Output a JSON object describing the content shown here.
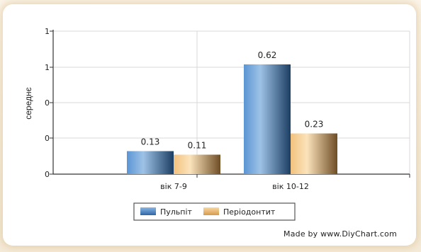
{
  "chart_data": {
    "type": "bar",
    "title": "",
    "xlabel": "",
    "ylabel": "середнє",
    "ylim": [
      0,
      1
    ],
    "ytick_labels": [
      "1",
      "1",
      "0",
      "0",
      "0"
    ],
    "categories": [
      "вік 7-9",
      "вік 10-12"
    ],
    "series": [
      {
        "name": "Пульпіт",
        "values": [
          0.13,
          0.62
        ],
        "labels": [
          "0.13",
          "0.62"
        ],
        "color": "#4a83c3"
      },
      {
        "name": "Періодонтит",
        "values": [
          0.11,
          0.23
        ],
        "labels": [
          "0.11",
          "0.23"
        ],
        "color": "#e8b66e"
      }
    ],
    "grid": true,
    "legend_position": "bottom"
  },
  "watermark": "Made by www.DiyChart.com"
}
